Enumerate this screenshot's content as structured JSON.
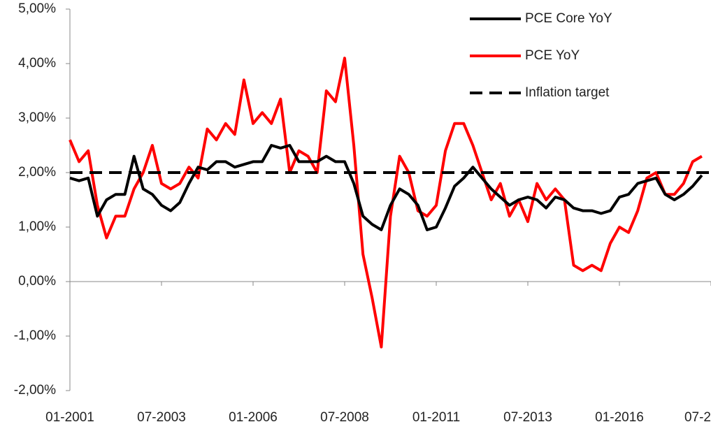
{
  "chart_data": {
    "type": "line",
    "categories": [
      "01-2001",
      null,
      null,
      null,
      null,
      null,
      null,
      null,
      null,
      null,
      "07-2003",
      null,
      null,
      null,
      null,
      null,
      null,
      null,
      null,
      null,
      "01-2006",
      null,
      null,
      null,
      null,
      null,
      null,
      null,
      null,
      null,
      "07-2008",
      null,
      null,
      null,
      null,
      null,
      null,
      null,
      null,
      null,
      "01-2011",
      null,
      null,
      null,
      null,
      null,
      null,
      null,
      null,
      null,
      "07-2013",
      null,
      null,
      null,
      null,
      null,
      null,
      null,
      null,
      null,
      "01-2016",
      null,
      null,
      null,
      null,
      null,
      null,
      null,
      null,
      null,
      "07-2"
    ],
    "series": [
      {
        "name": "PCE Core YoY",
        "color": "#000000",
        "style": "solid",
        "values": [
          1.9,
          1.85,
          1.9,
          1.2,
          1.5,
          1.6,
          1.6,
          2.3,
          1.7,
          1.6,
          1.4,
          1.3,
          1.45,
          1.8,
          2.1,
          2.05,
          2.2,
          2.2,
          2.1,
          2.15,
          2.2,
          2.2,
          2.5,
          2.45,
          2.5,
          2.2,
          2.2,
          2.2,
          2.3,
          2.2,
          2.2,
          1.8,
          1.2,
          1.05,
          0.95,
          1.4,
          1.7,
          1.6,
          1.4,
          0.95,
          1.0,
          1.35,
          1.75,
          1.9,
          2.1,
          1.9,
          1.7,
          1.55,
          1.4,
          1.5,
          1.55,
          1.5,
          1.35,
          1.55,
          1.5,
          1.35,
          1.3,
          1.3,
          1.25,
          1.3,
          1.55,
          1.6,
          1.8,
          1.85,
          1.9,
          1.6,
          1.5,
          1.6,
          1.75,
          1.95,
          null
        ]
      },
      {
        "name": "PCE YoY",
        "color": "#ff0000",
        "style": "solid",
        "values": [
          2.6,
          2.2,
          2.4,
          1.4,
          0.8,
          1.2,
          1.2,
          1.7,
          2.0,
          2.5,
          1.8,
          1.7,
          1.8,
          2.1,
          1.9,
          2.8,
          2.6,
          2.9,
          2.7,
          3.7,
          2.9,
          3.1,
          2.9,
          3.35,
          2.0,
          2.4,
          2.3,
          2.0,
          3.5,
          3.3,
          4.1,
          2.5,
          0.5,
          -0.3,
          -1.2,
          1.2,
          2.3,
          2.0,
          1.3,
          1.2,
          1.4,
          2.4,
          2.9,
          2.9,
          2.5,
          2.0,
          1.5,
          1.8,
          1.2,
          1.5,
          1.1,
          1.8,
          1.5,
          1.7,
          1.5,
          0.3,
          0.2,
          0.3,
          0.2,
          0.7,
          1.0,
          0.9,
          1.3,
          1.9,
          2.0,
          1.6,
          1.6,
          1.8,
          2.2,
          2.3,
          null
        ]
      },
      {
        "name": "Inflation target",
        "color": "#000000",
        "style": "dashed",
        "values": [
          2,
          2,
          2,
          2,
          2,
          2,
          2,
          2,
          2,
          2,
          2,
          2,
          2,
          2,
          2,
          2,
          2,
          2,
          2,
          2,
          2,
          2,
          2,
          2,
          2,
          2,
          2,
          2,
          2,
          2,
          2,
          2,
          2,
          2,
          2,
          2,
          2,
          2,
          2,
          2,
          2,
          2,
          2,
          2,
          2,
          2,
          2,
          2,
          2,
          2,
          2,
          2,
          2,
          2,
          2,
          2,
          2,
          2,
          2,
          2,
          2,
          2,
          2,
          2,
          2,
          2,
          2,
          2,
          2,
          2,
          2
        ]
      }
    ],
    "ylim": [
      -2,
      5
    ],
    "yticks": [
      {
        "value": -2,
        "label": "-2,00%"
      },
      {
        "value": -1,
        "label": "-1,00%"
      },
      {
        "value": 0,
        "label": "0,00%"
      },
      {
        "value": 1,
        "label": "1,00%"
      },
      {
        "value": 2,
        "label": "2,00%"
      },
      {
        "value": 3,
        "label": "3,00%"
      },
      {
        "value": 4,
        "label": "4,00%"
      },
      {
        "value": 5,
        "label": "5,00%"
      }
    ],
    "grid": false,
    "legend_position": "top-right"
  }
}
